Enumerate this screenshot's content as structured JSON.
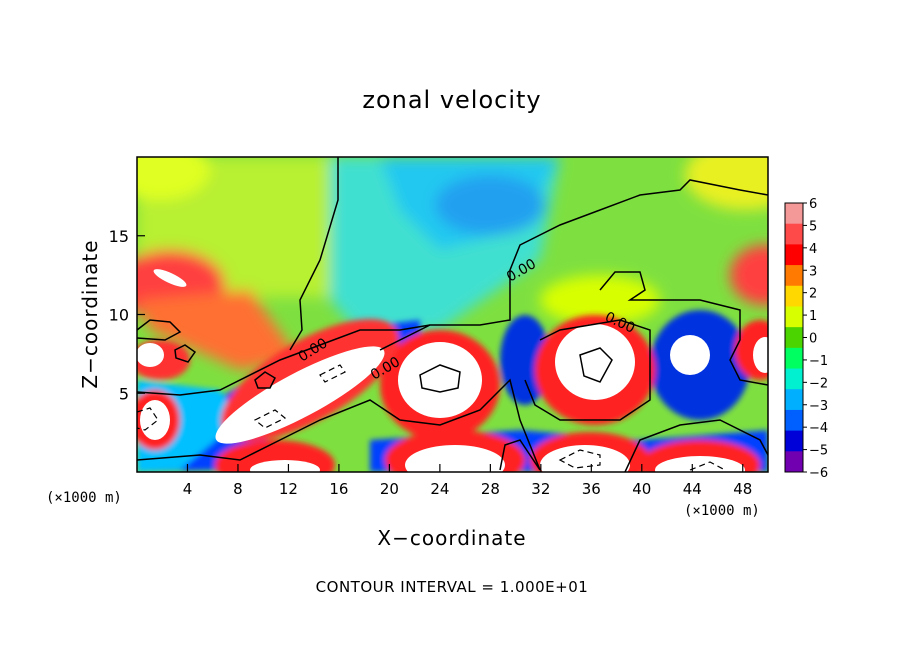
{
  "chart_data": {
    "type": "heatmap",
    "title": "zonal velocity",
    "xlabel": "X−coordinate",
    "ylabel": "Z−coordinate",
    "x_unit": "(×1000 m)",
    "xlim": [
      0,
      50
    ],
    "ylim": [
      0,
      20
    ],
    "x_ticks": [
      "4",
      "8",
      "12",
      "16",
      "20",
      "24",
      "28",
      "32",
      "36",
      "40",
      "44",
      "48"
    ],
    "y_ticks": [
      "5",
      "10",
      "15"
    ],
    "colorbar": {
      "ticks": [
        "6",
        "5",
        "4",
        "3",
        "2",
        "1",
        "0",
        "−1",
        "−2",
        "−3",
        "−4",
        "−5",
        "−6"
      ],
      "colors": [
        "#f59898",
        "#ff4a4a",
        "#ff0000",
        "#ff7a00",
        "#ffd800",
        "#d8ff00",
        "#4cd400",
        "#00ff60",
        "#00f0d0",
        "#00b0ff",
        "#0060ff",
        "#0000d8",
        "#7000b0"
      ]
    },
    "contour_labels": [
      "0.00",
      "0.00",
      "0.00",
      "0.00"
    ],
    "contour_interval_text": "CONTOUR INTERVAL = 1.000E+01"
  }
}
